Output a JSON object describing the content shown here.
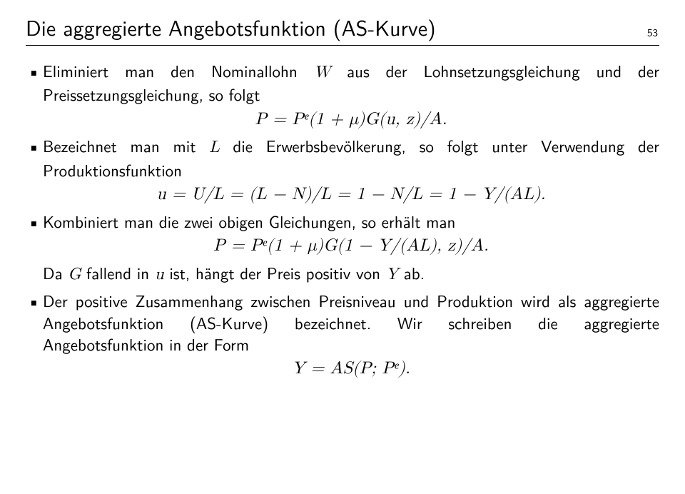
{
  "header": {
    "title": "Die aggregierte Angebotsfunktion (AS-Kurve)",
    "page": "53"
  },
  "bullets": {
    "b1": {
      "text_a": "Eliminiert man den Nominallohn ",
      "w": "W",
      "text_b": " aus der Lohnsetzungsgleichung und der Preissetzungsgleichung, so folgt"
    },
    "eq1": "P = Pᵉ(1 + μ)G(u, z)/A.",
    "b2": {
      "text_a": "Bezeichnet man mit ",
      "L": "L",
      "text_b": " die Erwerbsbevölkerung, so folgt unter Verwendung der Produktionsfunktion"
    },
    "eq2": "u = U/L = (L − N)/L = 1 − N/L = 1 − Y/(AL).",
    "b3": {
      "text": "Kombiniert man die zwei obigen Gleichungen, so erhält man"
    },
    "eq3": "P = Pᵉ(1 + μ)G(1 − Y/(AL), z)/A.",
    "b3_after": {
      "da": "Da ",
      "G": "G",
      "t1": " fallend in ",
      "u": "u",
      "t2": " ist, hängt der Preis positiv von ",
      "Y": "Y",
      "t3": " ab."
    },
    "b4": {
      "text": "Der positive Zusammenhang zwischen Preisniveau und Produktion wird als aggregierte Angebotsfunktion (AS-Kurve) bezeichnet. Wir schreiben die aggregierte Angebotsfunktion in der Form"
    },
    "eq4": "Y = AS(P; Pᵉ)."
  }
}
